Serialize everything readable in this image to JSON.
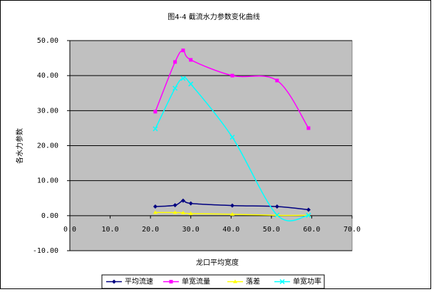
{
  "chart_data": {
    "type": "line",
    "title": "图4-4 截流水力参数变化曲线",
    "x_label": "龙口平均宽度",
    "y_label": "各水力参数",
    "x": [
      21.2,
      26.1,
      28.1,
      30.0,
      40.3,
      51.4,
      59.2
    ],
    "series": [
      {
        "name": "平均流速",
        "color": "#000080",
        "marker": "diamond",
        "values": [
          2.6,
          3.0,
          4.3,
          3.5,
          2.9,
          2.6,
          1.7
        ]
      },
      {
        "name": "单宽流量",
        "color": "#ff00ff",
        "marker": "square",
        "values": [
          29.7,
          43.9,
          47.2,
          44.5,
          40.0,
          38.6,
          25.0
        ]
      },
      {
        "name": "落差",
        "color": "#ffff00",
        "marker": "triangle",
        "values": [
          0.9,
          0.9,
          0.8,
          0.6,
          0.4,
          0.1,
          0.1
        ]
      },
      {
        "name": "单宽功率",
        "color": "#00ffff",
        "marker": "x",
        "values": [
          24.8,
          36.4,
          39.2,
          37.6,
          22.4,
          0.2,
          0.1
        ]
      }
    ],
    "xlim": [
      0,
      70
    ],
    "xticks": [
      {
        "value": 0,
        "label": "0.0"
      },
      {
        "value": 10,
        "label": "10.0"
      },
      {
        "value": 20,
        "label": "20.0"
      },
      {
        "value": 30,
        "label": "30.0"
      },
      {
        "value": 40,
        "label": "40.0"
      },
      {
        "value": 50,
        "label": "50.0"
      },
      {
        "value": 60,
        "label": "60.0"
      },
      {
        "value": 70,
        "label": "70.0"
      }
    ],
    "ylim": [
      -10,
      50
    ],
    "yticks": [
      {
        "value": -10,
        "label": "-10.00"
      },
      {
        "value": 0,
        "label": "0.00"
      },
      {
        "value": 10,
        "label": "10.00"
      },
      {
        "value": 20,
        "label": "20.00"
      },
      {
        "value": 30,
        "label": "30.00"
      },
      {
        "value": 40,
        "label": "40.00"
      },
      {
        "value": 50,
        "label": "50.00"
      }
    ],
    "grid": true,
    "smooth": true,
    "legend": "bottom"
  }
}
